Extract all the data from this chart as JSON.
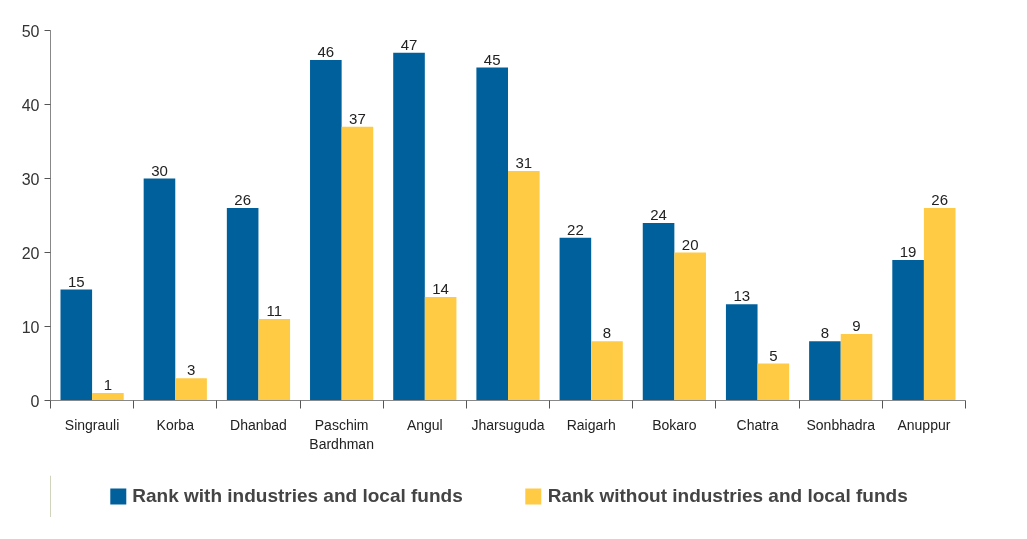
{
  "chart_data": {
    "type": "bar",
    "categories": [
      "Singrauli",
      "Korba",
      "Dhanbad",
      "Paschim Bardhman",
      "Angul",
      "Jharsuguda",
      "Raigarh",
      "Bokaro",
      "Chatra",
      "Sonbhadra",
      "Anuppur"
    ],
    "series": [
      {
        "name": "Rank with industries and local funds",
        "color": "#00609c",
        "values": [
          15,
          30,
          26,
          46,
          47,
          45,
          22,
          24,
          13,
          8,
          19
        ]
      },
      {
        "name": "Rank without industries and local funds",
        "color": "#ffcb44",
        "values": [
          1,
          3,
          11,
          37,
          14,
          31,
          8,
          20,
          5,
          9,
          26
        ]
      }
    ],
    "ylim": [
      0,
      50
    ],
    "yticks": [
      0,
      10,
      20,
      30,
      40,
      50
    ],
    "data_labels": true,
    "grid": false,
    "legend": "bottom"
  }
}
